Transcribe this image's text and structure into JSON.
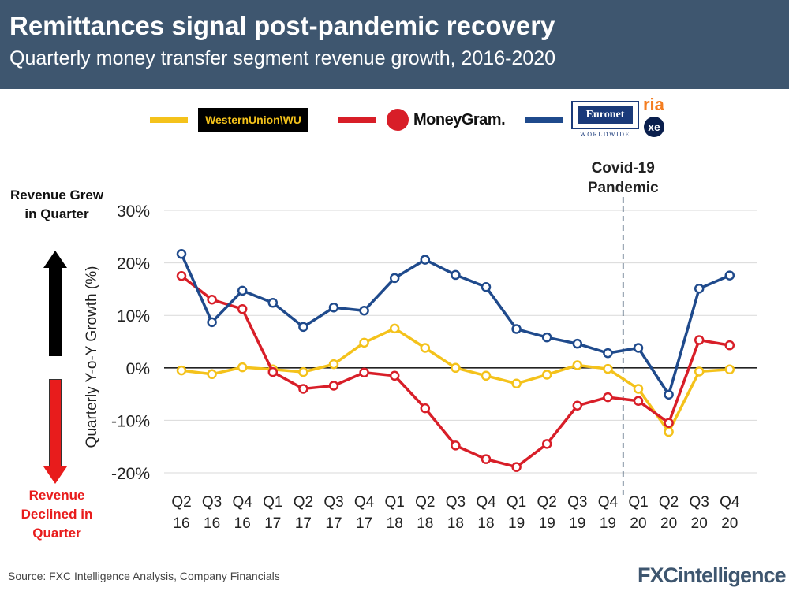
{
  "header": {
    "title": "Remittances signal post-pandemic recovery",
    "subtitle": "Quarterly money transfer segment revenue growth, 2016-2020"
  },
  "legend": {
    "western_union": "WesternUnion\\WU",
    "moneygram": "MoneyGram.",
    "euronet": "Euronet",
    "euronet_sub": "WORLDWIDE",
    "ria": "ria",
    "xe": "xe"
  },
  "side_labels": {
    "up": "Revenue Grew in Quarter",
    "down": "Revenue Declined in Quarter"
  },
  "footer": {
    "source": "Source: FXC Intelligence Analysis, Company Financials",
    "brand": "FXCintelligence"
  },
  "colors": {
    "header_bg": "#3e566f",
    "western_union": "#f4c21b",
    "moneygram": "#d81e28",
    "euronet": "#1f4a8c",
    "up_arrow": "#000000",
    "down_arrow": "#e81c1c"
  },
  "chart_data": {
    "type": "line",
    "title": "Remittances signal post-pandemic recovery",
    "subtitle": "Quarterly money transfer segment revenue growth, 2016-2020",
    "ylabel": "Quarterly Y-o-Y Growth (%)",
    "xlabel": "",
    "ylim": [
      -20,
      30
    ],
    "yticks": [
      30,
      20,
      10,
      0,
      -10,
      -20
    ],
    "ytick_labels": [
      "30%",
      "20%",
      "10%",
      "0%",
      "-10%",
      "-20%"
    ],
    "grid": true,
    "categories": [
      {
        "q": "Q2",
        "y": "16"
      },
      {
        "q": "Q3",
        "y": "16"
      },
      {
        "q": "Q4",
        "y": "16"
      },
      {
        "q": "Q1",
        "y": "17"
      },
      {
        "q": "Q2",
        "y": "17"
      },
      {
        "q": "Q3",
        "y": "17"
      },
      {
        "q": "Q4",
        "y": "17"
      },
      {
        "q": "Q1",
        "y": "18"
      },
      {
        "q": "Q2",
        "y": "18"
      },
      {
        "q": "Q3",
        "y": "18"
      },
      {
        "q": "Q4",
        "y": "18"
      },
      {
        "q": "Q1",
        "y": "19"
      },
      {
        "q": "Q2",
        "y": "19"
      },
      {
        "q": "Q3",
        "y": "19"
      },
      {
        "q": "Q4",
        "y": "19"
      },
      {
        "q": "Q1",
        "y": "20"
      },
      {
        "q": "Q2",
        "y": "20"
      },
      {
        "q": "Q3",
        "y": "20"
      },
      {
        "q": "Q4",
        "y": "20"
      }
    ],
    "annotation": {
      "text": "Covid-19 Pandemic",
      "between": [
        14,
        15
      ]
    },
    "series": [
      {
        "name": "Western Union",
        "key": "western_union",
        "values": [
          -0.5,
          -1.2,
          0.1,
          -0.3,
          -0.8,
          0.7,
          4.8,
          7.5,
          3.8,
          0.0,
          -1.5,
          -3.0,
          -1.3,
          0.5,
          -0.2,
          -4.0,
          -12.2,
          -0.7,
          -0.3
        ]
      },
      {
        "name": "MoneyGram",
        "key": "moneygram",
        "values": [
          17.5,
          13.0,
          11.2,
          -0.8,
          -4.0,
          -3.4,
          -0.9,
          -1.5,
          -7.7,
          -14.8,
          -17.4,
          -18.9,
          -14.5,
          -7.2,
          -5.6,
          -6.3,
          -10.5,
          5.3,
          4.3
        ]
      },
      {
        "name": "Euronet",
        "key": "euronet",
        "values": [
          21.7,
          8.7,
          14.7,
          12.4,
          7.8,
          11.5,
          10.9,
          17.1,
          20.6,
          17.7,
          15.4,
          7.4,
          5.8,
          4.6,
          2.8,
          3.8,
          -5.1,
          15.1,
          17.6
        ]
      }
    ]
  }
}
